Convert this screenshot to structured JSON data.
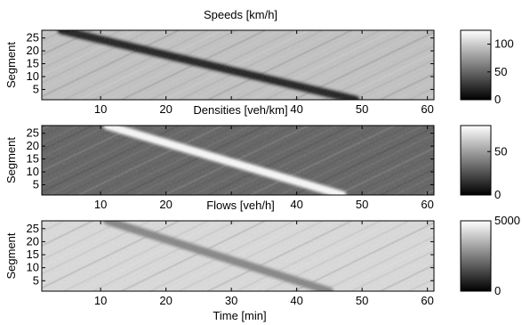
{
  "chart_data": [
    {
      "type": "heatmap",
      "title": "Speeds [km/h]",
      "ylabel": "Segment",
      "xlabel": "",
      "x_ticks": [
        10,
        20,
        30,
        40,
        50,
        60
      ],
      "y_ticks": [
        5,
        10,
        15,
        20,
        25
      ],
      "x_tick_labels": [
        "10",
        "20",
        "",
        "40",
        "50",
        "60"
      ],
      "y_tick_labels": [
        "5",
        "10",
        "15",
        "20",
        "25"
      ],
      "xlim": [
        1,
        61
      ],
      "ylim": [
        1,
        28
      ],
      "colorbar": {
        "range": [
          0,
          125
        ],
        "ticks": [
          0,
          50,
          100
        ],
        "tick_labels": [
          "0",
          "50",
          "100"
        ],
        "colormap": "gray"
      },
      "features": [
        {
          "kind": "low-band",
          "t_start": 4,
          "seg_start": 28,
          "t_end": 49,
          "seg_end": 1,
          "value": 15
        }
      ],
      "background_level": 95
    },
    {
      "type": "heatmap",
      "title": "Densities [veh/km]",
      "ylabel": "Segment",
      "xlabel": "",
      "x_ticks": [
        10,
        20,
        30,
        40,
        50,
        60
      ],
      "y_ticks": [
        5,
        10,
        15,
        20,
        25
      ],
      "x_tick_labels": [
        "10",
        "20",
        "",
        "40",
        "50",
        "60"
      ],
      "y_tick_labels": [
        "5",
        "10",
        "15",
        "20",
        "25"
      ],
      "xlim": [
        1,
        61
      ],
      "ylim": [
        1,
        28
      ],
      "colorbar": {
        "range": [
          0,
          80
        ],
        "ticks": [
          0,
          50
        ],
        "tick_labels": [
          "0",
          "50"
        ],
        "colormap": "gray"
      },
      "features": [
        {
          "kind": "high-band",
          "t_start": 11,
          "seg_start": 28,
          "t_end": 47,
          "seg_end": 1,
          "value": 78
        }
      ],
      "background_level": 30
    },
    {
      "type": "heatmap",
      "title": "Flows [veh/h]",
      "ylabel": "Segment",
      "xlabel": "Time [min]",
      "x_ticks": [
        10,
        20,
        30,
        40,
        50,
        60
      ],
      "y_ticks": [
        5,
        10,
        15,
        20,
        25
      ],
      "x_tick_labels": [
        "10",
        "20",
        "30",
        "40",
        "50",
        "60"
      ],
      "y_tick_labels": [
        "5",
        "10",
        "15",
        "20",
        "25"
      ],
      "xlim": [
        1,
        61
      ],
      "ylim": [
        1,
        28
      ],
      "colorbar": {
        "range": [
          0,
          5000
        ],
        "ticks": [
          0,
          5000
        ],
        "tick_labels": [
          "0",
          "5000"
        ],
        "colormap": "gray"
      },
      "features": [
        {
          "kind": "low-band",
          "t_start": 11,
          "seg_start": 28,
          "t_end": 45,
          "seg_end": 1,
          "value": 2600
        }
      ],
      "background_level": 4300
    }
  ]
}
